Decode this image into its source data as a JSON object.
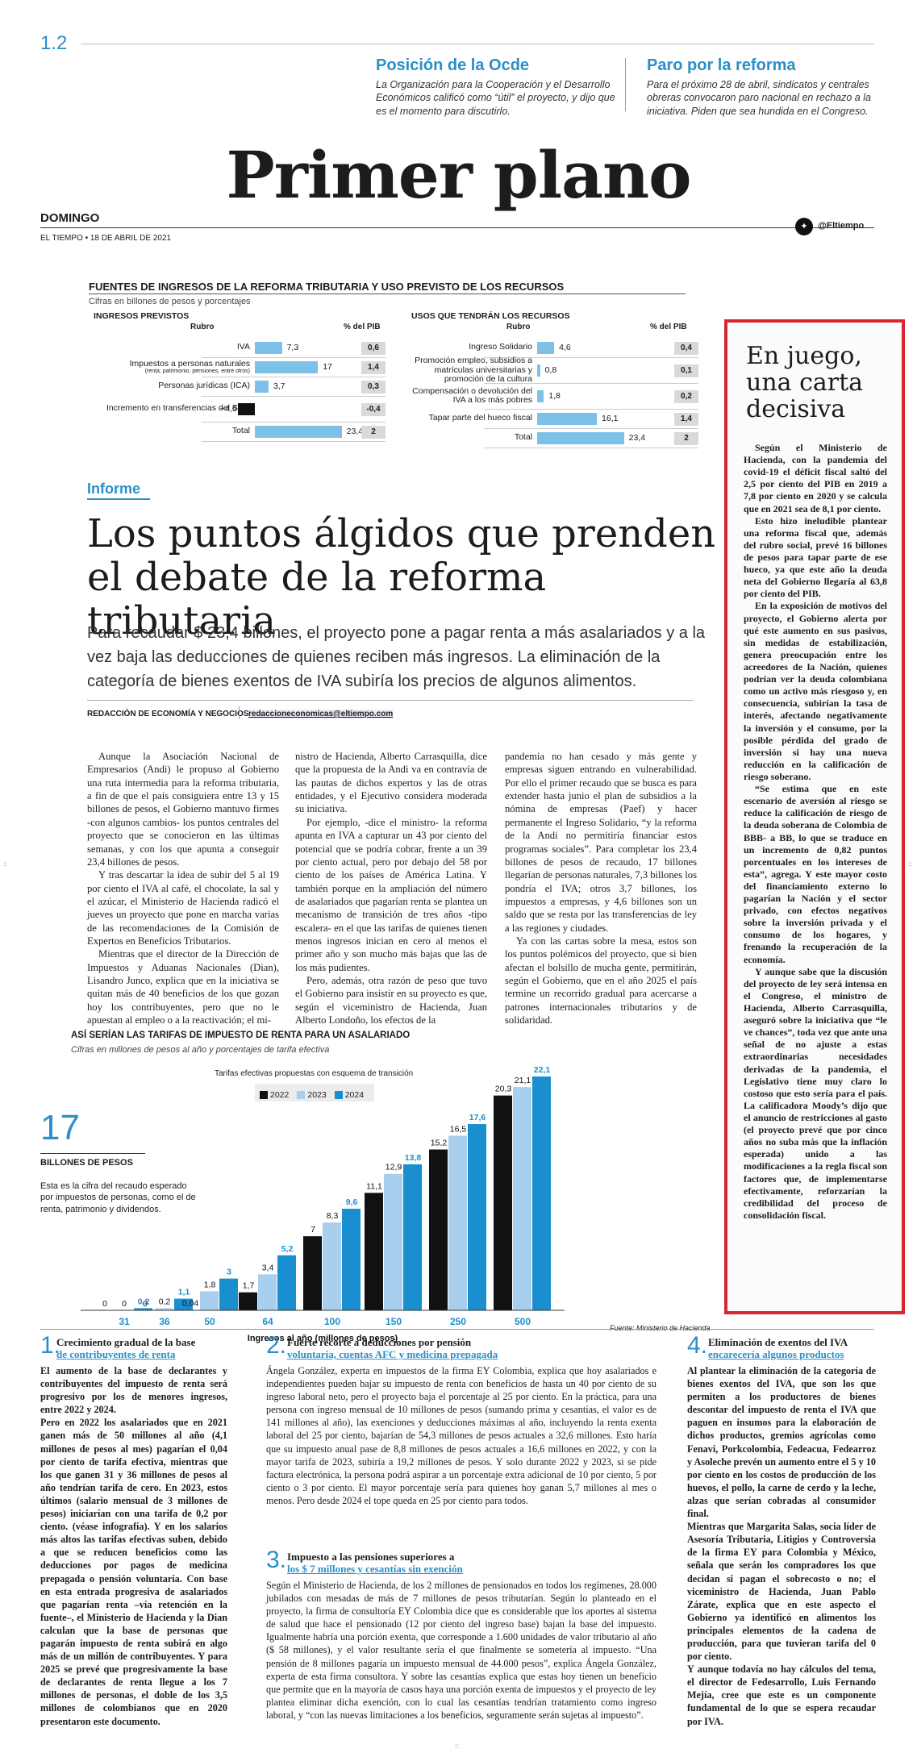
{
  "header": {
    "page_number": "1.2",
    "teasers": [
      {
        "title": "Posición de la Ocde",
        "text": "La Organización para la Cooperación y el Desarrollo Económicos calificó como “útil” el proyecto, y dijo que es el momento para discutirlo."
      },
      {
        "title": "Paro por la reforma",
        "text": "Para el próximo 28 de abril, sindicatos y centrales obreras convocaron paro nacional en rechazo a la iniciativa. Piden que sea hundida en el Congreso."
      }
    ],
    "section": "Primer plano",
    "day": "DOMINGO",
    "dateline": "EL TIEMPO • 18 DE ABRIL DE 2021",
    "twitter_icon": "twitter-icon",
    "twitter_handle": "@Eltiempo"
  },
  "revenue_table": {
    "title": "FUENTES DE INGRESOS DE LA REFORMA TRIBUTARIA Y USO PREVISTO DE LOS RECURSOS",
    "subtitle": "Cifras en billones de pesos y porcentajes",
    "left": {
      "section": "INGRESOS PREVISTOS",
      "col_rubro": "Rubro",
      "col_pib": "% del PIB",
      "rows": [
        {
          "label": "IVA",
          "note": "",
          "value": 7.3,
          "value_text": "7,3",
          "pib": "0,6"
        },
        {
          "label": "Impuestos a personas naturales",
          "note": "(renta, patrimonio, pensiones, entre otros)",
          "value": 17,
          "value_text": "17",
          "pib": "1,4"
        },
        {
          "label": "Personas jurídicas (ICA)",
          "note": "",
          "value": 3.7,
          "value_text": "3,7",
          "pib": "0,3"
        },
        {
          "label": "Incremento en transferencias del SGP",
          "note": "",
          "value": -4.6,
          "value_text": "−4,6",
          "pib": "-0,4"
        },
        {
          "label": "Total",
          "note": "",
          "value": 23.4,
          "value_text": "23,4",
          "pib": "2"
        }
      ]
    },
    "right": {
      "section": "USOS QUE TENDRÁN LOS RECURSOS",
      "col_rubro": "Rubro",
      "col_pib": "% del PIB",
      "rows": [
        {
          "label": "Ingreso Solidario",
          "value": 4.6,
          "value_text": "4,6",
          "pib": "0,4"
        },
        {
          "label": "Promoción empleo, subsidios a matrículas universitarias y promoción de la cultura",
          "value": 0.8,
          "value_text": "0,8",
          "pib": "0,1"
        },
        {
          "label": "Compensación o devolución del IVA a los más pobres",
          "value": 1.8,
          "value_text": "1,8",
          "pib": "0,2"
        },
        {
          "label": "Tapar parte del hueco fiscal",
          "value": 16.1,
          "value_text": "16,1",
          "pib": "1,4"
        },
        {
          "label": "Total",
          "value": 23.4,
          "value_text": "23,4",
          "pib": "2"
        }
      ]
    }
  },
  "article": {
    "kicker": "Informe",
    "headline": "Los puntos álgidos que prenden el debate de la reforma tributaria",
    "deck": "Para recaudar $ 23,4 billones, el proyecto pone a pagar renta a más asalariados y a la vez baja las deducciones de quienes reciben más ingresos. La eliminación de la categoría de bienes exentos de IVA subiría los precios de algunos alimentos.",
    "byline": "REDACCIÓN DE ECONOMÍA Y NEGOCIOS",
    "email": "redaccioneconomicas@eltiempo.com",
    "columns": [
      [
        "Aunque la Asociación Nacional de Empresarios (Andi) le propuso al Gobierno una ruta intermedia para la reforma tributaria, a fin de que el país consiguiera entre 13 y 15 billones de pesos, el Gobierno mantuvo firmes -con algunos cambios- los puntos centrales del proyecto que se conocieron en las últimas semanas, y con los que apunta a conseguir 23,4 billones de pesos.",
        "Y tras descartar la idea de subir del 5 al 19 por ciento el IVA al café, el chocolate, la sal y el azúcar, el Ministerio de Hacienda radicó el jueves un proyecto que pone en marcha varias de las recomendaciones de la Comisión de Expertos en Beneficios Tributarios.",
        "Mientras que el director de la Dirección de Impuestos y Aduanas Nacionales (Dian), Lisandro Junco, explica que en la iniciativa se quitan más de 40 beneficios de los que gozan hoy los contribuyentes, pero que no le apuestan al empleo o a la reactivación; el mi-"
      ],
      [
        "nistro de Hacienda, Alberto Carrasquilla, dice que la propuesta de la Andi va en contravía de las pautas de dichos expertos y las de otras entidades, y el Ejecutivo considera moderada su iniciativa.",
        "Por ejemplo, -dice el ministro- la reforma apunta en IVA a capturar un 43 por ciento del potencial que se podría cobrar, frente a un 39 por ciento actual, pero por debajo del 58 por ciento de los países de América Latina. Y también porque en la ampliación del número de asalariados que pagarían renta se plantea un mecanismo de transición de tres años -tipo escalera- en el que las tarifas de quienes tienen menos ingresos inician en cero al menos el primer año y son mucho más bajas que las de los más pudientes.",
        "Pero, además, otra razón de peso que tuvo el Gobierno para insistir en su proyecto es que, según el viceministro de Hacienda, Juan Alberto Londoño, los efectos de la"
      ],
      [
        "pandemia no han cesado y más gente y empresas siguen entrando en vulnerabilidad. Por ello el primer recaudo que se busca es para extender hasta junio el plan de subsidios a la nómina de empresas (Paef) y hacer permanente el Ingreso Solidario, “y la reforma de la Andi no permitiría financiar estos programas sociales”. Para completar los 23,4 billones de pesos de recaudo, 17 billones llegarían de personas naturales, 7,3 billones los pondría el IVA; otros 3,7 billones, los impuestos a empresas, y 4,6 billones son un saldo que se resta por las transferencias de ley a las regiones y ciudades.",
        "Ya con las cartas sobre la mesa, estos son los puntos polémicos del proyecto, que si bien afectan el bolsillo de mucha gente, permitirán, según el Gobierno, que en el año 2025 el país termine un recorrido gradual para acercarse a patrones internacionales tributarios y de solidaridad."
      ]
    ]
  },
  "sidebar": {
    "title": "En juego, una carta decisiva",
    "paragraphs": [
      "Según el Ministerio de Hacienda, con la pandemia del covid-19 el déficit fiscal saltó del 2,5 por ciento del PIB en 2019 a 7,8 por ciento en 2020 y se calcula que en 2021 sea de 8,1 por ciento.",
      "Esto hizo ineludible plantear una reforma fiscal que, además del rubro social, prevé 16 billones de pesos para tapar parte de ese hueco, ya que este año la deuda neta del Gobierno llegaría al 63,8 por ciento del PIB.",
      "En la exposición de motivos del proyecto, el Gobierno alerta por qué este aumento en sus pasivos, sin medidas de estabilización, genera preocupación entre los acreedores de la Nación, quienes podrían ver la deuda colombiana como un activo más riesgoso y, en consecuencia, subirían la tasa de interés, afectando negativamente la inversión y el consumo, por la posible pérdida del grado de inversión si hay una nueva reducción en la calificación de riesgo soberano.",
      "“Se estima que en este escenario de aversión al riesgo se reduce la calificación de riesgo de la deuda soberana de Colombia de BBB- a BB, lo que se traduce en un incremento de 0,82 puntos porcentuales en los intereses de esta”, agrega. Y este mayor costo del financiamiento externo lo pagarían la Nación y el sector privado, con efectos negativos sobre la inversión privada y el consumo de los hogares, y frenando la recuperación de la economía.",
      "Y aunque sabe que la discusión del proyecto de ley será intensa en el Congreso, el ministro de Hacienda, Alberto Carrasquilla, aseguró sobre la iniciativa que “le ve chances”, toda vez que ante una señal de no ajuste a estas extraordinarias necesidades derivadas de la pandemia, el Legislativo tiene muy claro lo costoso que esto sería para el país. La calificadora Moody’s dijo que el anuncio de restricciones al gasto (el proyecto prevé que por cinco años no suba más que la inflación esperada) unido a las modificaciones a la regla fiscal son factores que, de implementarse efectivamente, reforzarían la credibilidad del proceso de consolidación fiscal."
    ]
  },
  "figure": {
    "big_number": "17",
    "big_label": "BILLONES DE PESOS",
    "big_desc": "Esta es la cifra del recaudo esperado por impuestos de personas, como el de renta, patrimonio y dividendos.",
    "legend_title": "Tarifas efectivas propuestas con esquema de transición",
    "source": "Fuente: Ministerio de Hacienda"
  },
  "chart_data": {
    "type": "bar",
    "title": "ASÍ SERÍAN LAS TARIFAS DE IMPUESTO DE RENTA PARA UN ASALARIADO",
    "subtitle": "Cifras en millones de pesos al año y porcentajes de tarifa efectiva",
    "xlabel": "Ingresos al año (millones de pesos)",
    "ylabel": "",
    "categories": [
      "31",
      "36",
      "50",
      "64",
      "100",
      "150",
      "250",
      "500"
    ],
    "series": [
      {
        "name": "2022",
        "color": "#111111",
        "values": [
          0,
          0,
          0.04,
          1.7,
          7,
          11.1,
          15.2,
          20.3
        ],
        "labels": [
          "0",
          "0",
          "0,04",
          "1,7",
          "7",
          "11,1",
          "15,2",
          "20,3"
        ]
      },
      {
        "name": "2023",
        "color": "#a9cfee",
        "values": [
          0,
          0.2,
          1.8,
          3.4,
          8.3,
          12.9,
          16.5,
          21.1
        ],
        "labels": [
          "0",
          "0,2",
          "1,8",
          "3,4",
          "8,3",
          "12,9",
          "16,5",
          "21,1"
        ]
      },
      {
        "name": "2024",
        "color": "#1a8fd0",
        "values": [
          0.2,
          1.1,
          3,
          5.2,
          9.6,
          13.8,
          17.6,
          22.1
        ],
        "labels": [
          "0,2",
          "1,1",
          "3",
          "5,2",
          "9,6",
          "13,8",
          "17,6",
          "22,1"
        ]
      }
    ],
    "ylim": [
      0,
      22.1
    ],
    "grid": false,
    "legend": "top-center"
  },
  "bottom": {
    "items": [
      {
        "num": "1.",
        "title": "Crecimiento gradual de la base",
        "subtitle": "de contribuyentes de renta",
        "paragraphs": [
          "El aumento de la base de declarantes y contribuyentes del impuesto de renta será progresivo por los de menores ingresos, entre 2022 y 2024.",
          "Pero en 2022 los asalariados que en 2021 ganen más de 50 millones al año (4,1 millones de pesos al mes) pagarían el 0,04 por ciento de tarifa efectiva, mientras que los que ganen 31 y 36 millones de pesos al año tendrían tarifa de cero. En 2023, estos últimos (salario mensual de 3 millones de pesos) iniciarían con una tarifa de 0,2 por ciento. (véase infografía). Y en los salarios más altos las tarifas efectivas suben, debido a que se reducen beneficios como las deducciones por pagos de medicina prepagada o pensión voluntaria. Con base en esta entrada progresiva de asalariados que pagarían renta –vía retención en la fuente–, el Ministerio de Hacienda y la Dian calculan que la base de personas que pagarán impuesto de renta subirá en algo más de un millón de contribuyentes. Y para 2025 se prevé que progresivamente la base de declarantes de renta llegue a los 7 millones de personas, el doble de los 3,5 millones de colombianos que en 2020 presentaron este documento."
        ]
      },
      {
        "num": "2.",
        "title": "Fuerte recorte a deducciones por pensión",
        "subtitle": "voluntaria, cuentas AFC y medicina prepagada",
        "paragraphs": [
          "Ángela González, experta en impuestos de la firma EY Colombia, explica que hoy asalariados e independientes pueden bajar su impuesto de renta con beneficios de hasta un 40 por ciento de su ingreso laboral neto, pero el proyecto baja el porcentaje al 25 por ciento. En la práctica, para una persona con ingreso mensual de 10 millones de pesos (sumando prima y cesantías, el valor es de 141 millones al año), las exenciones y deducciones máximas al año, incluyendo la renta exenta laboral del 25 por ciento, bajarían de 54,3 millones de pesos actuales a 32,6 millones. Esto haría que su impuesto anual pase de 8,8 millones de pesos actuales a 16,6 millones en 2022, y con la mayor tarifa de 2023, subiría a 19,2 millones de pesos. Y solo durante 2022 y 2023, si se pide factura electrónica, la persona podrá aspirar a un porcentaje extra adicional de 10 por ciento, 5 por ciento o 3 por ciento. El mayor porcentaje sería para quienes hoy ganan 5,7 millones al mes o menos. Pero desde 2024 el tope queda en 25 por ciento para todos."
        ]
      },
      {
        "num": "3.",
        "title": "Impuesto a las pensiones superiores a",
        "subtitle": "los $ 7 millones y cesantías sin exención",
        "paragraphs": [
          "Según el Ministerio de Hacienda, de los 2 millones de pensionados en todos los regímenes, 28.000 jubilados con mesadas de más de 7 millones de pesos tributarían. Según lo planteado en el proyecto, la firma de consultoría EY Colombia dice que es considerable que los aportes al sistema de salud que hace el pensionado (12 por ciento del ingreso base) bajan la base del impuesto. Igualmente habría una porción exenta, que corresponde a 1.600 unidades de valor tributario al año ($ 58 millones), y el valor resultante sería el que finalmente se sometería al impuesto. “Una pensión de 8 millones pagaría un impuesto mensual de 44.000 pesos”, explica Ángela González, experta de esta firma consultora. Y sobre las cesantías explica que estas hoy tienen un beneficio que permite que en la mayoría de casos haya una porción exenta de impuestos y el proyecto de ley plantea eliminar dicha exención, con lo cual las cesantías tendrían tratamiento como ingreso laboral, y “con las nuevas limitaciones a los beneficios, seguramente serán sujetas al impuesto”."
        ]
      },
      {
        "num": "4.",
        "title": "Eliminación de exentos del IVA",
        "subtitle": "encarecería algunos productos",
        "paragraphs": [
          "Al plantear la eliminación de la categoría de bienes exentos del IVA, que son los que permiten a los productores de bienes descontar del impuesto de renta el IVA que paguen en insumos para la elaboración de dichos productos, gremios agrícolas como Fenavi, Porkcolombia, Fedeacua, Fedearroz y Asoleche prevén un aumento entre el 5 y 10 por ciento en los costos de producción de los huevos, el pollo, la carne de cerdo y la leche, alzas que serían cobradas al consumidor final.",
          "Mientras que Margarita Salas, socia líder de Asesoría Tributaria, Litigios y Controversia de la firma EY para Colombia y México, señala que serán los compradores los que decidan si pagan el sobrecosto o no; el viceministro de Hacienda, Juan Pablo Zárate, explica que en este aspecto el Gobierno ya identificó en alimentos los principales elementos de la cadena de producción, para que tuvieran tarifa del 0 por ciento.",
          "Y aunque todavía no hay cálculos del tema, el director de Fedesarrollo, Luis Fernando Mejía, cree que este es un componente fundamental de lo que se espera recaudar por IVA."
        ]
      }
    ]
  }
}
